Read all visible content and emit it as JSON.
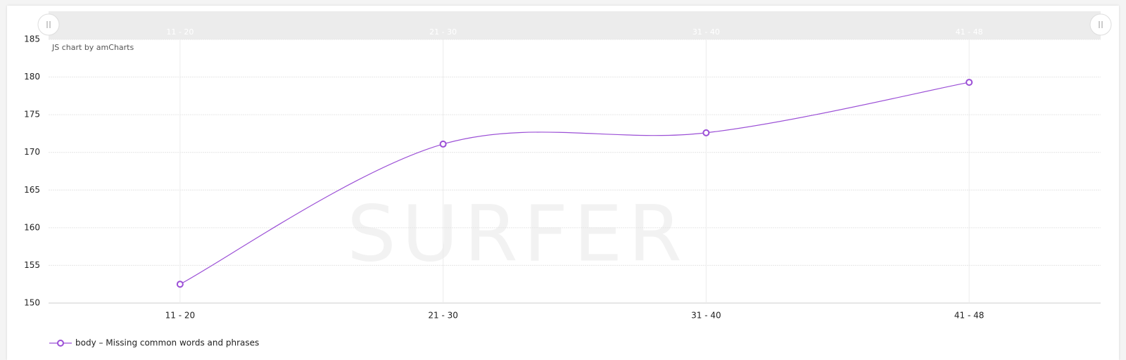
{
  "chart_data": {
    "type": "line",
    "credit": "JS chart by amCharts",
    "watermark": "SURFER",
    "categories": [
      "11 - 20",
      "21 - 30",
      "31 - 40",
      "41 - 48"
    ],
    "series": [
      {
        "name": "body – Missing common words and phrases",
        "color": "#9b4fd6",
        "values": [
          152.5,
          171.1,
          172.6,
          179.3
        ]
      }
    ],
    "ylim": [
      150,
      185
    ],
    "yticks": [
      150,
      155,
      160,
      165,
      170,
      175,
      180,
      185
    ],
    "grid": true,
    "smooth": true,
    "legend": "bottom-left"
  }
}
